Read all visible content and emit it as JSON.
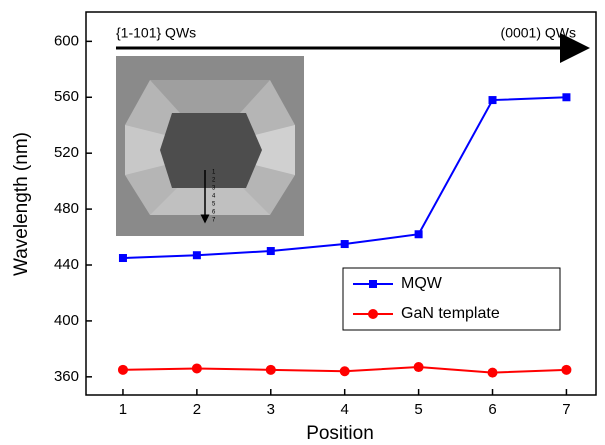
{
  "chart_data": {
    "type": "line",
    "x_label": "Position",
    "y_label": "Wavelength (nm)",
    "x": [
      1,
      2,
      3,
      4,
      5,
      6,
      7
    ],
    "series": [
      {
        "name": "MQW",
        "color": "#0000ff",
        "marker": "square",
        "values": [
          445,
          447,
          450,
          455,
          462,
          558,
          560
        ]
      },
      {
        "name": "GaN template",
        "color": "#ff0000",
        "marker": "circle",
        "values": [
          365,
          366,
          365,
          364,
          367,
          363,
          365
        ]
      }
    ],
    "xlim": [
      0.5,
      7.4
    ],
    "ylim": [
      347,
      621
    ],
    "xticks": [
      1,
      2,
      3,
      4,
      5,
      6,
      7
    ],
    "yticks": [
      360,
      400,
      440,
      480,
      520,
      560,
      600
    ],
    "annotations": [
      "{1-101} QWs",
      "(0001) QWs"
    ],
    "inset_labels": [
      "1",
      "2",
      "3",
      "4",
      "5",
      "6",
      "7"
    ],
    "legend": "lower-right"
  }
}
